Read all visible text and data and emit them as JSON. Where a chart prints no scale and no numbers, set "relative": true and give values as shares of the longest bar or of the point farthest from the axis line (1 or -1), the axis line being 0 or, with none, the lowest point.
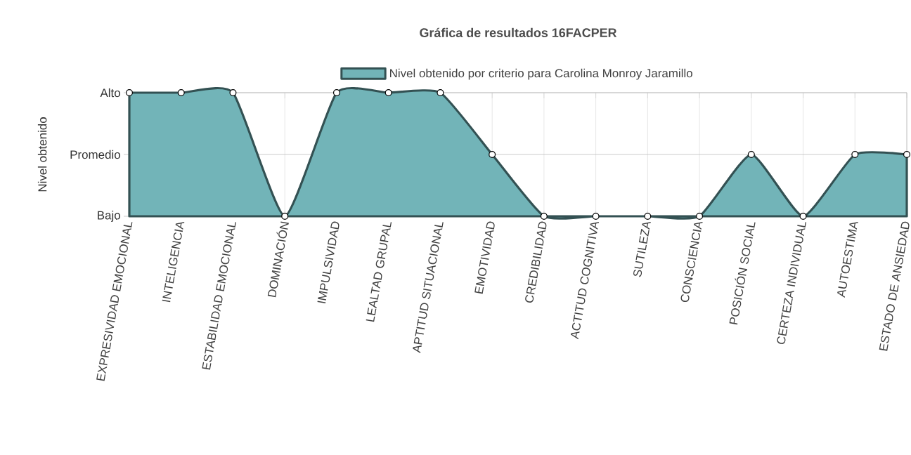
{
  "chart_data": {
    "type": "area",
    "title": "Gráfica de resultados 16FACPER",
    "ylabel": "Nivel obtenido",
    "relative": true,
    "categories": [
      "EXPRESIVIDAD EMOCIONAL",
      "INTELIGENCIA",
      "ESTABILIDAD EMOCIONAL",
      "DOMINACIÓN",
      "IMPULSIVIDAD",
      "LEALTAD GRUPAL",
      "APTITUD SITUACIONAL",
      "EMOTIVIDAD",
      "CREDIBILIDAD",
      "ACTITUD COGNITIVA",
      "SUTILEZA",
      "CONSCIENCIA",
      "POSICIÓN SOCIAL",
      "CERTEZA INDIVIDUAL",
      "AUTOESTIMA",
      "ESTADO DE ANSIEDAD"
    ],
    "series": [
      {
        "name": "Nivel obtenido por criterio para Carolina Monroy Jaramillo",
        "color": "#72b4b8",
        "values": [
          1,
          1,
          1,
          0,
          1,
          1,
          1,
          0.5,
          0,
          0,
          0,
          0,
          0.5,
          0,
          0.5,
          0.5
        ]
      }
    ],
    "ref_lines": [
      {
        "axis": "y",
        "value": 0,
        "label": "Bajo"
      },
      {
        "axis": "y",
        "value": 0.5,
        "label": "Promedio"
      },
      {
        "axis": "y",
        "value": 1,
        "label": "Alto"
      }
    ],
    "grid": "x",
    "legend": "top",
    "marker": "circle",
    "line_style": "solid"
  }
}
